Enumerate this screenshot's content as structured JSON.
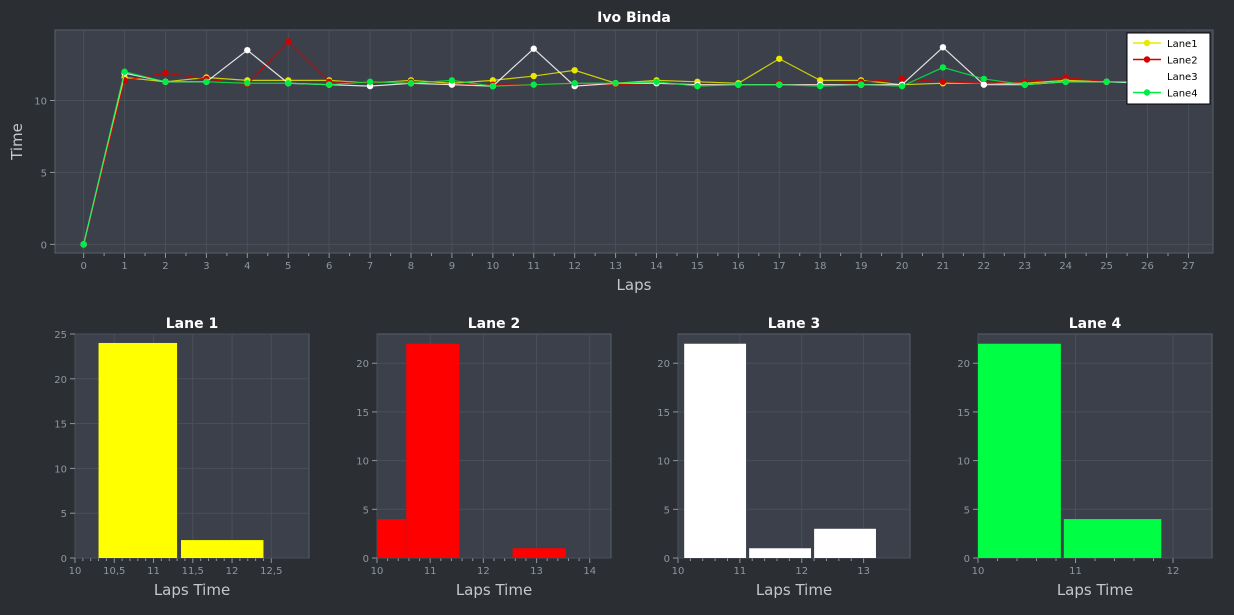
{
  "chart_data": [
    {
      "type": "line",
      "title": "Ivo Binda",
      "xlabel": "Laps",
      "ylabel": "Time",
      "xlim": [
        -0.7,
        27.6
      ],
      "ylim": [
        -0.6,
        14.9
      ],
      "xticks": [
        0,
        1,
        2,
        3,
        4,
        5,
        6,
        7,
        8,
        9,
        10,
        11,
        12,
        13,
        14,
        15,
        16,
        17,
        18,
        19,
        20,
        21,
        22,
        23,
        24,
        25,
        26,
        27
      ],
      "yticks": [
        0,
        5,
        10
      ],
      "grid": true,
      "legend_position": "top-right",
      "series": [
        {
          "name": "Lane1",
          "color": "#e8e800",
          "x": [
            0,
            1,
            2,
            3,
            4,
            5,
            6,
            7,
            8,
            9,
            10,
            11,
            12,
            13,
            14,
            15,
            16,
            17,
            18,
            19,
            20,
            21,
            22,
            23,
            24,
            25,
            26
          ],
          "y": [
            0,
            11.6,
            11.3,
            11.6,
            11.4,
            11.4,
            11.4,
            11.2,
            11.4,
            11.2,
            11.4,
            11.7,
            12.1,
            11.2,
            11.4,
            11.3,
            11.2,
            12.9,
            11.4,
            11.4,
            11.1,
            11.2,
            11.2,
            11.2,
            11.4,
            11.3,
            11.3
          ]
        },
        {
          "name": "Lane2",
          "color": "#d40000",
          "x": [
            0,
            1,
            2,
            3,
            4,
            5,
            6,
            7,
            8,
            9,
            10,
            11,
            12,
            13,
            14,
            15,
            16,
            17,
            18,
            19,
            20,
            21,
            22,
            23,
            24,
            25,
            26
          ],
          "y": [
            0,
            11.4,
            11.9,
            11.5,
            11.1,
            14.1,
            11.3,
            11.2,
            11.3,
            11.1,
            11.1,
            11.1,
            11.2,
            11.1,
            11.2,
            11.1,
            11.1,
            11.2,
            11.1,
            11.3,
            11.5,
            11.3,
            11.2,
            11.3,
            11.6,
            11.3,
            11.3
          ]
        },
        {
          "name": "Lane3",
          "color": "#ffffff",
          "x": [
            0,
            1,
            2,
            3,
            4,
            5,
            6,
            7,
            8,
            9,
            10,
            11,
            12,
            13,
            14,
            15,
            16,
            17,
            18,
            19,
            20,
            21,
            22,
            23,
            24,
            25,
            26
          ],
          "y": [
            0,
            11.9,
            11.3,
            11.3,
            13.5,
            11.2,
            11.1,
            11.0,
            11.2,
            11.1,
            11.0,
            13.6,
            11.0,
            11.2,
            11.2,
            11.1,
            11.1,
            11.1,
            11.1,
            11.1,
            11.1,
            13.7,
            11.1,
            11.1,
            11.3,
            11.3,
            11.2
          ]
        },
        {
          "name": "Lane4",
          "color": "#00ee44",
          "x": [
            0,
            1,
            2,
            3,
            4,
            5,
            6,
            7,
            8,
            9,
            10,
            11,
            12,
            13,
            14,
            15,
            16,
            17,
            18,
            19,
            20,
            21,
            22,
            23,
            24,
            25,
            26
          ],
          "y": [
            0,
            12.0,
            11.3,
            11.3,
            11.2,
            11.2,
            11.1,
            11.3,
            11.2,
            11.4,
            11.0,
            11.1,
            11.2,
            11.2,
            11.3,
            11.0,
            11.1,
            11.1,
            11.0,
            11.1,
            11.0,
            12.3,
            11.5,
            11.1,
            11.3,
            11.3,
            11.3
          ]
        }
      ]
    },
    {
      "type": "bar",
      "title": "Lane 1",
      "xlabel": "Laps Time",
      "color": "#ffff00",
      "xlim": [
        10,
        12.98
      ],
      "ylim": [
        0,
        25
      ],
      "xticks": [
        10,
        10.5,
        11,
        11.5,
        12,
        12.5
      ],
      "xtick_labels": [
        "10",
        "10,5",
        "11",
        "11,5",
        "12",
        "12,5"
      ],
      "yticks": [
        0,
        5,
        10,
        15,
        20,
        25
      ],
      "bins": [
        {
          "x0": 10.3,
          "x1": 11.3,
          "value": 24
        },
        {
          "x0": 11.35,
          "x1": 12.4,
          "value": 2
        }
      ]
    },
    {
      "type": "bar",
      "title": "Lane 2",
      "xlabel": "Laps Time",
      "color": "#ff0000",
      "xlim": [
        10,
        14.4
      ],
      "ylim": [
        0,
        23
      ],
      "xticks": [
        10,
        11,
        12,
        13,
        14
      ],
      "xtick_labels": [
        "10",
        "11",
        "12",
        "13",
        "14"
      ],
      "yticks": [
        0,
        5,
        10,
        15,
        20
      ],
      "bins": [
        {
          "x0": 10,
          "x1": 10.55,
          "value": 4
        },
        {
          "x0": 10.55,
          "x1": 11.55,
          "value": 22
        },
        {
          "x0": 12.55,
          "x1": 13.55,
          "value": 1
        }
      ]
    },
    {
      "type": "bar",
      "title": "Lane 3",
      "xlabel": "Laps Time",
      "color": "#ffffff",
      "xlim": [
        10,
        13.75
      ],
      "ylim": [
        0,
        23
      ],
      "xticks": [
        10,
        11,
        12,
        13
      ],
      "xtick_labels": [
        "10",
        "11",
        "12",
        "13"
      ],
      "yticks": [
        0,
        5,
        10,
        15,
        20
      ],
      "bins": [
        {
          "x0": 10.1,
          "x1": 11.1,
          "value": 22
        },
        {
          "x0": 11.15,
          "x1": 12.15,
          "value": 1
        },
        {
          "x0": 12.2,
          "x1": 13.2,
          "value": 3
        }
      ]
    },
    {
      "type": "bar",
      "title": "Lane 4",
      "xlabel": "Laps Time",
      "color": "#00ff44",
      "xlim": [
        10,
        12.4
      ],
      "ylim": [
        0,
        23
      ],
      "xticks": [
        10,
        11,
        12
      ],
      "xtick_labels": [
        "10",
        "11",
        "12"
      ],
      "yticks": [
        0,
        5,
        10,
        15,
        20
      ],
      "bins": [
        {
          "x0": 10,
          "x1": 10.85,
          "value": 22
        },
        {
          "x0": 10.88,
          "x1": 11.88,
          "value": 4
        }
      ]
    }
  ]
}
